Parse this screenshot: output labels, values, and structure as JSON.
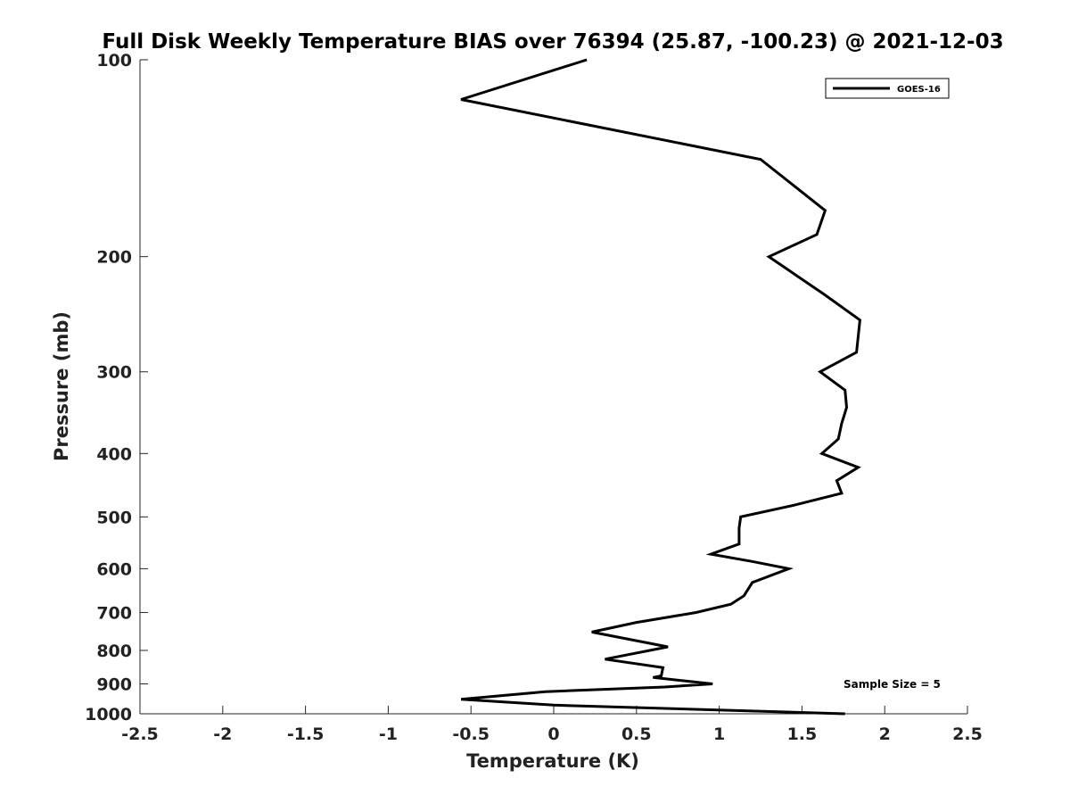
{
  "chart_data": {
    "type": "line",
    "title": "Full Disk Weekly Temperature BIAS over 76394 (25.87, -100.23) @ 2021-12-03",
    "xlabel": "Temperature (K)",
    "ylabel": "Pressure (mb)",
    "xlim": [
      -2.5,
      2.5
    ],
    "ylim": [
      100,
      1000
    ],
    "y_scale": "log",
    "y_reversed": true,
    "x_ticks": [
      -2.5,
      -2,
      -1.5,
      -1,
      -0.5,
      0,
      0.5,
      1,
      1.5,
      2,
      2.5
    ],
    "x_tick_labels": [
      "-2.5",
      "-2",
      "-1.5",
      "-1",
      "-0.5",
      "0",
      "0.5",
      "1",
      "1.5",
      "2",
      "2.5"
    ],
    "y_ticks": [
      100,
      200,
      300,
      400,
      500,
      600,
      700,
      800,
      900,
      1000
    ],
    "y_tick_labels": [
      "100",
      "200",
      "300",
      "400",
      "500",
      "600",
      "700",
      "800",
      "900",
      "1000"
    ],
    "grid": false,
    "legend_position": "top-right",
    "series": [
      {
        "name": "GOES-16",
        "color": "#000000",
        "points": [
          {
            "x": 0.2,
            "p": 100
          },
          {
            "x": -0.56,
            "p": 115
          },
          {
            "x": 1.25,
            "p": 142
          },
          {
            "x": 1.64,
            "p": 170
          },
          {
            "x": 1.59,
            "p": 185
          },
          {
            "x": 1.3,
            "p": 200
          },
          {
            "x": 1.63,
            "p": 228
          },
          {
            "x": 1.85,
            "p": 250
          },
          {
            "x": 1.83,
            "p": 280
          },
          {
            "x": 1.61,
            "p": 300
          },
          {
            "x": 1.76,
            "p": 320
          },
          {
            "x": 1.77,
            "p": 340
          },
          {
            "x": 1.74,
            "p": 360
          },
          {
            "x": 1.72,
            "p": 380
          },
          {
            "x": 1.62,
            "p": 400
          },
          {
            "x": 1.84,
            "p": 420
          },
          {
            "x": 1.71,
            "p": 440
          },
          {
            "x": 1.74,
            "p": 460
          },
          {
            "x": 1.45,
            "p": 480
          },
          {
            "x": 1.13,
            "p": 500
          },
          {
            "x": 1.12,
            "p": 520
          },
          {
            "x": 1.12,
            "p": 550
          },
          {
            "x": 0.95,
            "p": 570
          },
          {
            "x": 1.2,
            "p": 585
          },
          {
            "x": 1.42,
            "p": 600
          },
          {
            "x": 1.2,
            "p": 630
          },
          {
            "x": 1.15,
            "p": 660
          },
          {
            "x": 1.07,
            "p": 680
          },
          {
            "x": 0.86,
            "p": 700
          },
          {
            "x": 0.5,
            "p": 725
          },
          {
            "x": 0.23,
            "p": 750
          },
          {
            "x": 0.69,
            "p": 790
          },
          {
            "x": 0.31,
            "p": 825
          },
          {
            "x": 0.66,
            "p": 850
          },
          {
            "x": 0.65,
            "p": 875
          },
          {
            "x": 0.6,
            "p": 880
          },
          {
            "x": 0.96,
            "p": 900
          },
          {
            "x": 0.67,
            "p": 910
          },
          {
            "x": -0.05,
            "p": 925
          },
          {
            "x": -0.56,
            "p": 950
          },
          {
            "x": 0.0,
            "p": 970
          },
          {
            "x": 1.76,
            "p": 1000
          }
        ]
      }
    ],
    "legend": [
      {
        "label": "GOES-16",
        "color": "#000000"
      }
    ],
    "annotation": "Sample Size = 5"
  }
}
